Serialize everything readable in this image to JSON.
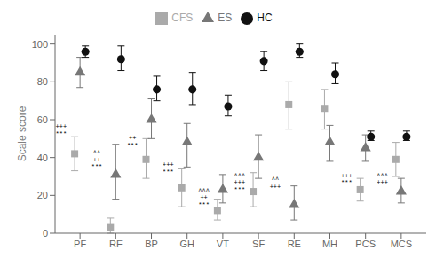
{
  "chart_data": {
    "type": "scatter",
    "categories": [
      "PF",
      "RF",
      "BP",
      "GH",
      "VT",
      "SF",
      "RE",
      "MH",
      "PCS",
      "MCS"
    ],
    "ylabel": "Scale score",
    "ylim": [
      0,
      105
    ],
    "yticks": [
      0,
      20,
      40,
      60,
      80,
      100
    ],
    "grid": false,
    "legend": "top",
    "series": [
      {
        "name": "CFS",
        "color": "#aaaaaa",
        "marker": "square",
        "values": [
          42,
          3,
          39,
          24,
          12,
          22,
          68,
          66,
          23,
          39
        ],
        "ci_lo": [
          33,
          0,
          29,
          14,
          7,
          14,
          55,
          55,
          17,
          30
        ],
        "ci_hi": [
          51,
          8,
          50,
          34,
          18,
          32,
          80,
          76,
          29,
          48
        ]
      },
      {
        "name": "ES",
        "color": "#777777",
        "marker": "triangle",
        "values": [
          85,
          31,
          60,
          48,
          23,
          40,
          15,
          48,
          45,
          22
        ],
        "ci_lo": [
          77,
          18,
          50,
          35,
          16,
          29,
          7,
          38,
          38,
          16
        ],
        "ci_hi": [
          93,
          47,
          71,
          58,
          31,
          52,
          25,
          57,
          52,
          29
        ]
      },
      {
        "name": "HC",
        "color": "#111111",
        "marker": "circle",
        "values": [
          96,
          92,
          76,
          76,
          67,
          91,
          96,
          84,
          51,
          51
        ],
        "ci_lo": [
          93,
          86,
          70,
          68,
          62,
          86,
          93,
          79,
          49,
          49
        ],
        "ci_hi": [
          99,
          99,
          83,
          85,
          73,
          96,
          100,
          90,
          54,
          54
        ]
      }
    ],
    "annotations": [
      {
        "category": "PF",
        "lines": [
          "+++",
          "***"
        ],
        "y": 58
      },
      {
        "category": "RF",
        "lines": [
          "^^",
          "++",
          "***"
        ],
        "y": 44
      },
      {
        "category": "BP",
        "lines": [
          "++",
          "***"
        ],
        "y": 52
      },
      {
        "category": "GH",
        "lines": [
          "+++",
          "***"
        ],
        "y": 38
      },
      {
        "category": "VT",
        "lines": [
          "^^^",
          "++",
          "***"
        ],
        "y": 24
      },
      {
        "category": "SF",
        "lines": [
          "^^^",
          "+++",
          "***"
        ],
        "y": 32
      },
      {
        "category": "RE",
        "lines": [
          "^^",
          "+++"
        ],
        "y": 30
      },
      {
        "category": "PCS",
        "lines": [
          "+++",
          "***"
        ],
        "y": 32
      },
      {
        "category": "MCS",
        "lines": [
          "^^^",
          "+++"
        ],
        "y": 32
      }
    ]
  }
}
